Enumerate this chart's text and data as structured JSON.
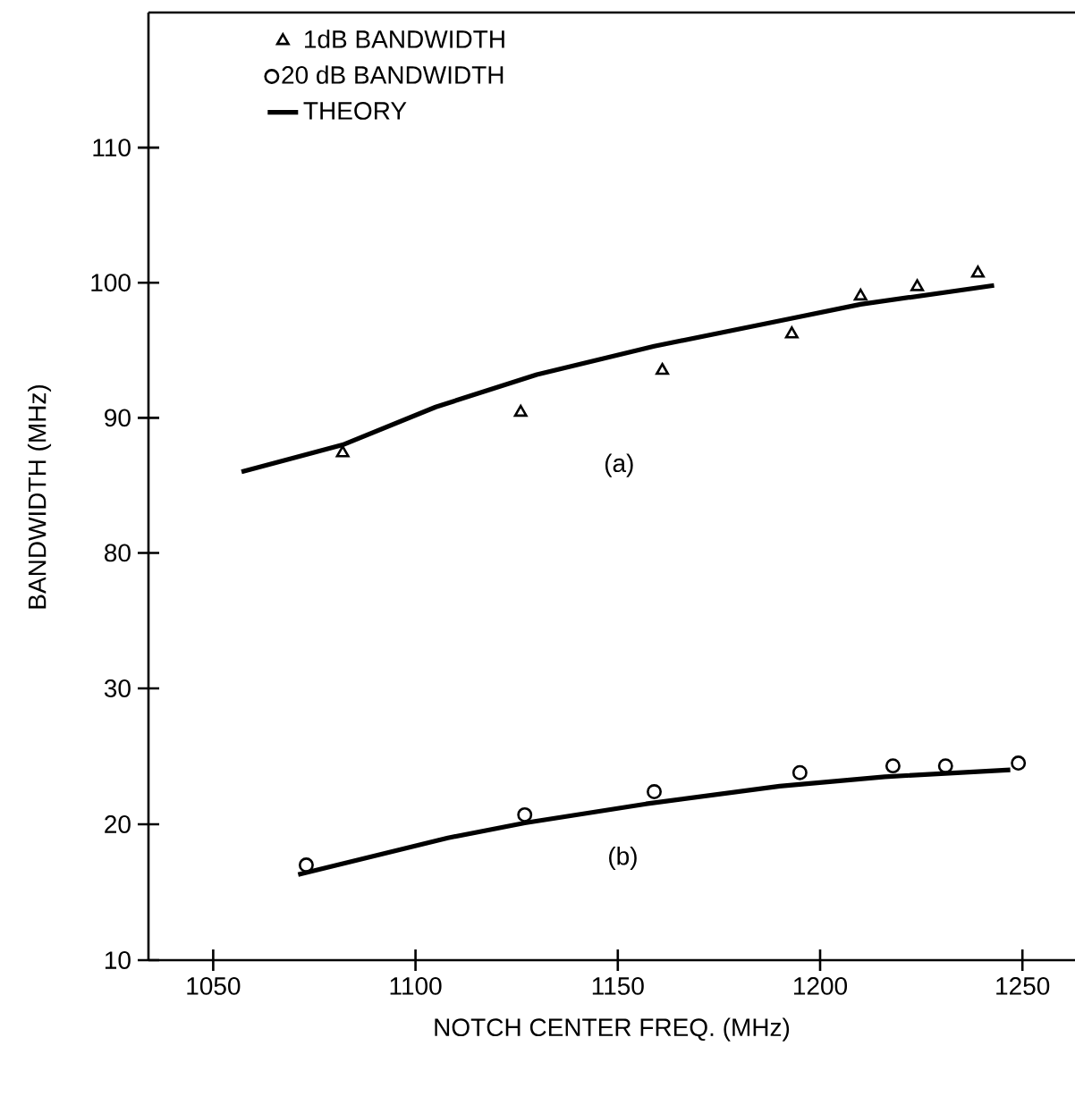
{
  "chart_data": [
    {
      "type": "scatter",
      "xlim": [
        1034,
        1263
      ],
      "ylim": [
        75,
        120
      ],
      "yticks": [
        80,
        90,
        100,
        110
      ],
      "tick_labels": "y",
      "ylabel": "BANDWIDTH (MHz)",
      "legend": "top left",
      "series": [
        {
          "name": "1dB BANDWIDTH",
          "marker": "triangle",
          "color": "#000000",
          "x": [
            1082,
            1126,
            1161,
            1193,
            1210,
            1224,
            1239
          ],
          "values": [
            87.4,
            90.4,
            93.5,
            96.2,
            99.0,
            99.7,
            100.7
          ]
        },
        {
          "name": "THEORY",
          "type": "line",
          "color": "#000000",
          "x": [
            1057,
            1082,
            1105,
            1130,
            1159,
            1192,
            1210,
            1243
          ],
          "values": [
            86.0,
            88.0,
            90.8,
            93.2,
            95.3,
            97.3,
            98.4,
            99.8
          ]
        }
      ],
      "annotations": [
        "(a)"
      ]
    },
    {
      "type": "scatter",
      "xlim": [
        1034,
        1263
      ],
      "ylim": [
        10,
        35
      ],
      "yticks": [
        10,
        20,
        30
      ],
      "xticks": [
        1050,
        1100,
        1150,
        1200,
        1250
      ],
      "xlabel": "NOTCH CENTER FREQ. (MHz)",
      "legend": "top left",
      "series": [
        {
          "name": "20 dB BANDWIDTH",
          "marker": "circle",
          "color": "#000000",
          "x": [
            1073,
            1127,
            1159,
            1195,
            1218,
            1231,
            1249
          ],
          "values": [
            17.0,
            20.7,
            22.4,
            23.8,
            24.3,
            24.3,
            24.5
          ]
        },
        {
          "type": "line",
          "color": "#000000",
          "x": [
            1071,
            1108,
            1127,
            1157,
            1190,
            1216,
            1247
          ],
          "values": [
            16.3,
            19.0,
            20.1,
            21.5,
            22.8,
            23.5,
            24.0
          ]
        }
      ],
      "annotations": [
        "(b)"
      ]
    }
  ]
}
